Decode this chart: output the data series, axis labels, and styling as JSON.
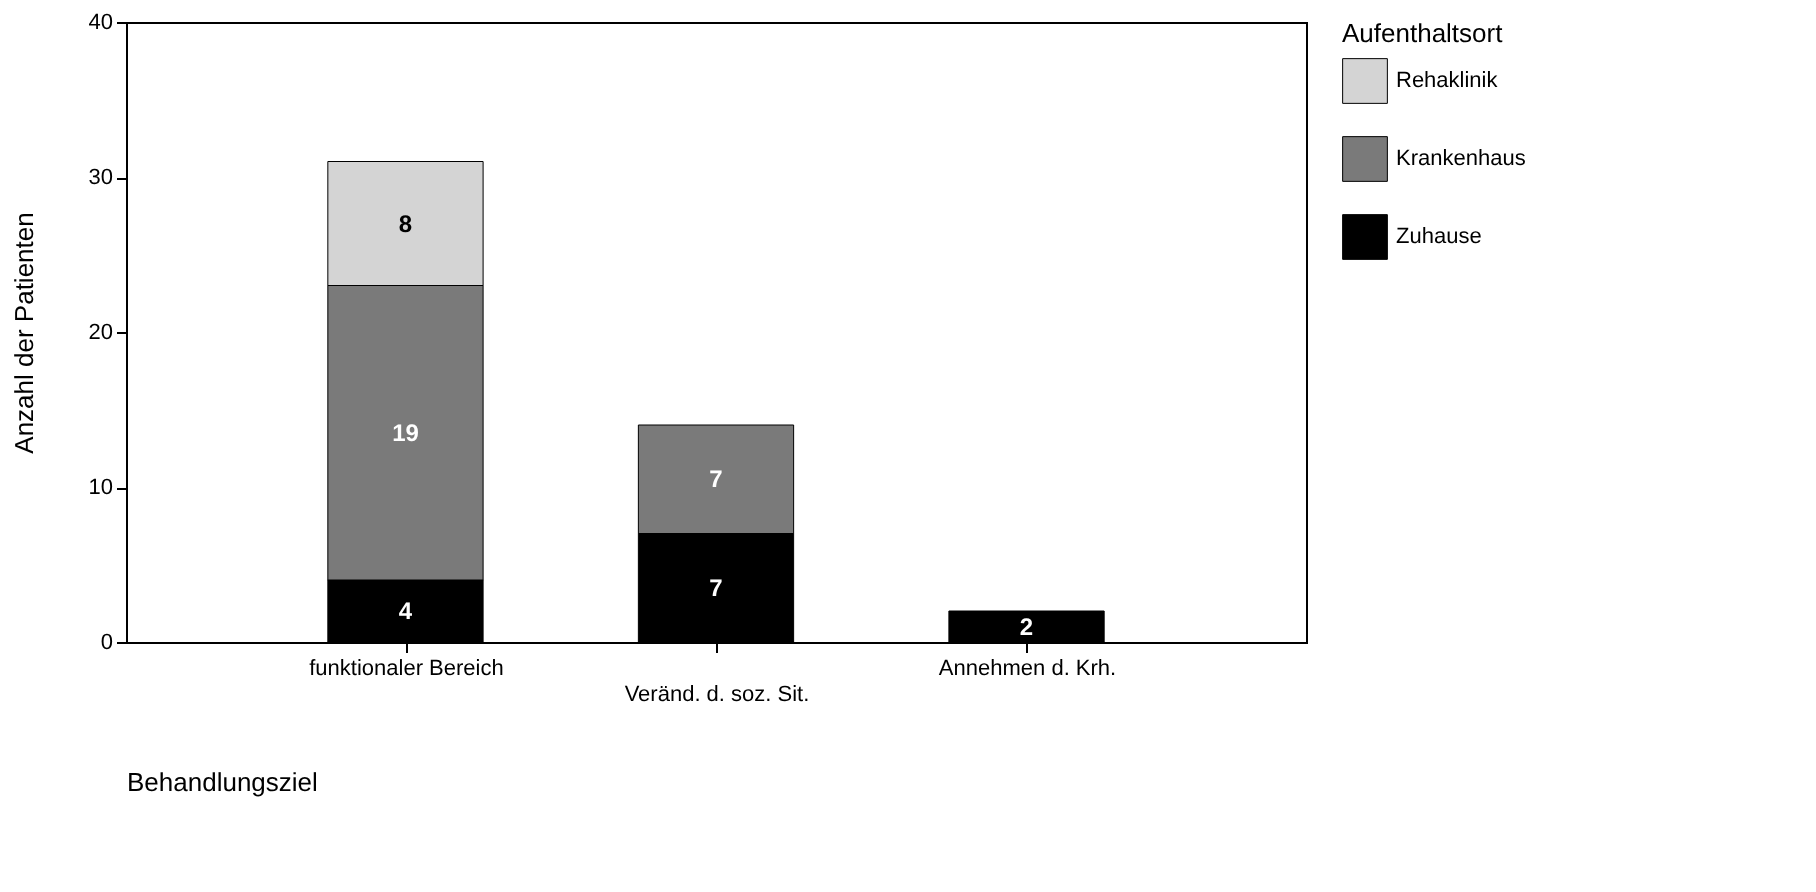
{
  "chart_data": {
    "type": "bar",
    "stacked": true,
    "xlabel": "Behandlungsziel",
    "ylabel": "Anzahl der Patienten",
    "legend_title": "Aufenthaltsort",
    "categories": [
      "funktionaler Bereich",
      "Veränd. d. soz. Sit.",
      "Annehmen d. Krh."
    ],
    "series": [
      {
        "name": "Zuhause",
        "color": "#000000",
        "values": [
          4,
          7,
          2
        ]
      },
      {
        "name": "Krankenhaus",
        "color": "#7a7a7a",
        "values": [
          19,
          7,
          null
        ]
      },
      {
        "name": "Rehaklinik",
        "color": "#d4d4d4",
        "values": [
          8,
          null,
          null
        ]
      }
    ],
    "ylim": [
      0,
      40
    ],
    "yticks": [
      0,
      10,
      20,
      30,
      40
    ],
    "grid": false,
    "legend": "right",
    "data_labels": true
  }
}
